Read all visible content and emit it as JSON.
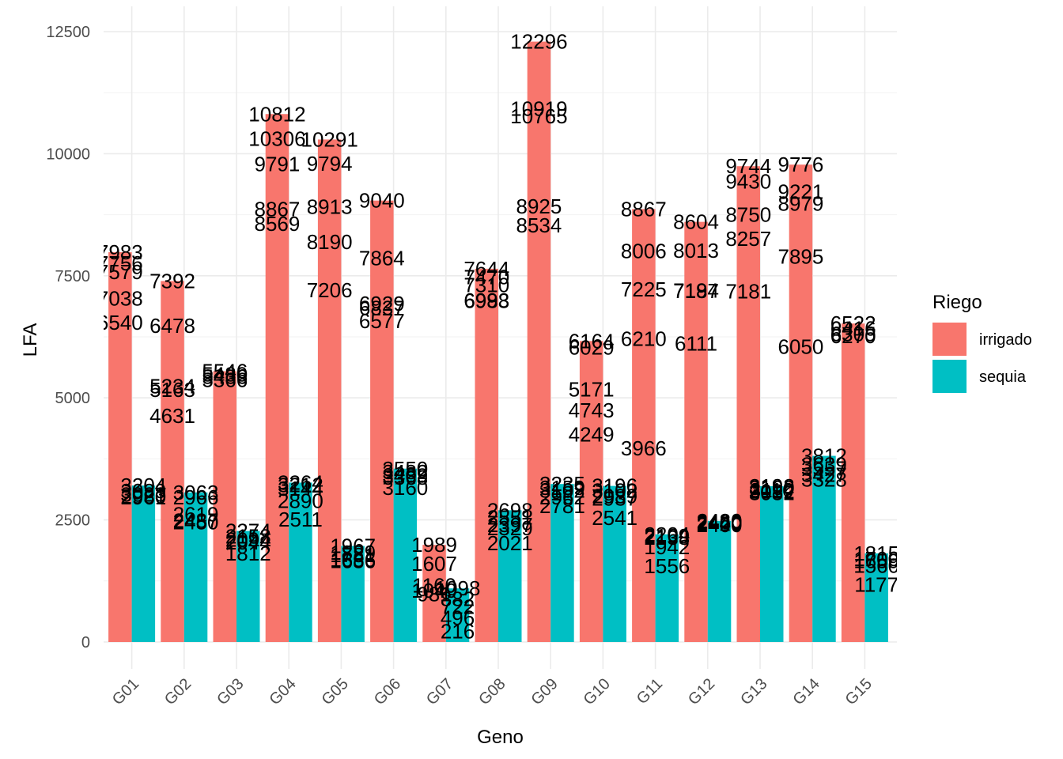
{
  "chart_data": {
    "type": "bar",
    "xlabel": "Geno",
    "ylabel": "LFA",
    "ylim": [
      -550,
      12800
    ],
    "yticks": [
      0,
      2500,
      5000,
      7500,
      10000,
      12500
    ],
    "categories": [
      "G01",
      "G02",
      "G03",
      "G04",
      "G05",
      "G06",
      "G07",
      "G08",
      "G09",
      "G10",
      "G11",
      "G12",
      "G13",
      "G14",
      "G15"
    ],
    "legend": {
      "title": "Riego",
      "position": "right"
    },
    "grid": true,
    "series": [
      {
        "name": "irrigado",
        "color": "#F8766D",
        "values": [
          7983,
          7392,
          5546,
          10812,
          10291,
          9040,
          1989,
          7644,
          12296,
          6164,
          8867,
          8604,
          9744,
          9776,
          6522
        ],
        "labels": [
          [
            7983,
            7756,
            7579,
            7038,
            6540
          ],
          [
            7392,
            6478,
            5234,
            5163,
            4631
          ],
          [
            5546,
            5480,
            5436,
            5366
          ],
          [
            10812,
            10306,
            9791,
            8867,
            8569
          ],
          [
            10291,
            9794,
            8913,
            8190,
            7206
          ],
          [
            9040,
            7864,
            6929,
            6837,
            6577
          ],
          [
            1989,
            1607,
            1160,
            1049,
            981
          ],
          [
            7644,
            7470,
            7310,
            6993,
            6988
          ],
          [
            12296,
            10919,
            10765,
            8925,
            8534
          ],
          [
            6164,
            6029,
            5171,
            4743,
            4249
          ],
          [
            8867,
            8006,
            7225,
            6210,
            3966
          ],
          [
            8604,
            8013,
            7194,
            7187,
            6111
          ],
          [
            9744,
            9430,
            8750,
            8257,
            7181
          ],
          [
            9776,
            9221,
            8979,
            7895,
            6050
          ],
          [
            6522,
            6416,
            6305,
            6270
          ]
        ]
      },
      {
        "name": "sequia",
        "color": "#00BFC4",
        "values": [
          3204,
          3063,
          2274,
          3264,
          1967,
          3550,
          1098,
          2698,
          3235,
          3196,
          2204,
          2480,
          3192,
          3812,
          1815
        ],
        "labels": [
          [
            3204,
            3089,
            3023,
            2980,
            2961
          ],
          [
            3063,
            2966,
            2619,
            2487,
            2450
          ],
          [
            2274,
            2158,
            2094,
            2044,
            1812
          ],
          [
            3264,
            3212,
            3144,
            2890,
            2511
          ],
          [
            1967,
            1829,
            1781,
            1686,
            1656
          ],
          [
            3550,
            3482,
            3409,
            3368,
            3160
          ],
          [
            1098,
            882,
            722,
            496,
            216
          ],
          [
            2698,
            2551,
            2397,
            2329,
            2021
          ],
          [
            3235,
            3159,
            3102,
            2962,
            2781
          ],
          [
            3196,
            3102,
            2989,
            2937,
            2541
          ],
          [
            2204,
            2169,
            2138,
            1942,
            1556
          ],
          [
            2480,
            2460,
            2440,
            2420,
            2400
          ],
          [
            3192,
            3160,
            3110,
            3082,
            3052
          ],
          [
            3812,
            3639,
            3557,
            3427,
            3328
          ],
          [
            1815,
            1700,
            1659,
            1560,
            1177
          ]
        ]
      }
    ]
  }
}
